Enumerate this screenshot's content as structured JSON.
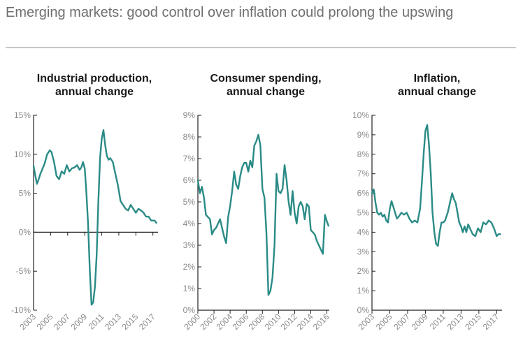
{
  "title": "Emerging markets: good control over inflation could prolong the upswing",
  "colors": {
    "line": "#2a8b86",
    "axis": "#222222",
    "tick_text": "#8a8a8a",
    "title_text": "#6f6f6f"
  },
  "chart_data": [
    {
      "type": "line",
      "title_lines": [
        "Industrial production,",
        "annual change"
      ],
      "ylim": [
        -10,
        15
      ],
      "y_ticks": [
        -10,
        -5,
        0,
        5,
        10,
        15
      ],
      "y_tick_labels": [
        "-10%",
        "-5%",
        "0%",
        "5%",
        "10%",
        "15%"
      ],
      "xlim": [
        2003,
        2017.6
      ],
      "x_ticks": [
        2003,
        2005,
        2007,
        2009,
        2011,
        2013,
        2015,
        2017
      ],
      "x_tick_labels": [
        "2003",
        "2005",
        "2007",
        "2009",
        "2011",
        "2013",
        "2015",
        "2017"
      ],
      "x_axis_at_zero": true,
      "series": [
        {
          "x": [
            2003.0,
            2003.2,
            2003.4,
            2003.6,
            2003.8,
            2004.0,
            2004.3,
            2004.6,
            2004.9,
            2005.1,
            2005.4,
            2005.7,
            2006.0,
            2006.3,
            2006.6,
            2006.9,
            2007.2,
            2007.5,
            2007.8,
            2008.1,
            2008.4,
            2008.6,
            2008.8,
            2009.0,
            2009.2,
            2009.4,
            2009.6,
            2009.8,
            2010.0,
            2010.2,
            2010.4,
            2010.6,
            2010.8,
            2011.0,
            2011.2,
            2011.4,
            2011.6,
            2011.8,
            2012.0,
            2012.3,
            2012.6,
            2012.9,
            2013.2,
            2013.5,
            2013.8,
            2014.1,
            2014.4,
            2014.7,
            2015.0,
            2015.3,
            2015.6,
            2015.9,
            2016.2,
            2016.5,
            2016.8,
            2017.0,
            2017.2,
            2017.4
          ],
          "y": [
            8.5,
            7.3,
            6.2,
            6.8,
            7.5,
            8.0,
            8.8,
            10.0,
            10.5,
            10.3,
            9.0,
            7.2,
            6.8,
            7.8,
            7.5,
            8.6,
            7.8,
            8.2,
            8.3,
            8.6,
            8.0,
            8.3,
            9.0,
            8.2,
            5.0,
            1.0,
            -5.0,
            -9.3,
            -9.0,
            -7.0,
            -3.0,
            4.0,
            9.5,
            12.0,
            13.1,
            11.2,
            9.8,
            9.3,
            9.5,
            9.0,
            7.5,
            6.0,
            4.0,
            3.5,
            3.0,
            2.8,
            3.5,
            3.0,
            2.5,
            3.0,
            2.8,
            2.5,
            2.0,
            2.0,
            1.5,
            1.5,
            1.5,
            1.2
          ]
        }
      ]
    },
    {
      "type": "line",
      "title_lines": [
        "Consumer spending,",
        "annual change"
      ],
      "ylim": [
        0,
        9
      ],
      "y_ticks": [
        0,
        1,
        2,
        3,
        4,
        5,
        6,
        7,
        8,
        9
      ],
      "y_tick_labels": [
        "0%",
        "1%",
        "2%",
        "3%",
        "4%",
        "5%",
        "6%",
        "7%",
        "8%",
        "9%"
      ],
      "xlim": [
        2000,
        2016.3
      ],
      "x_ticks": [
        2000,
        2002,
        2004,
        2006,
        2008,
        2010,
        2012,
        2014,
        2016
      ],
      "x_tick_labels": [
        "2000",
        "2002",
        "2004",
        "2006",
        "2008",
        "2010",
        "2012",
        "2014",
        "2016"
      ],
      "x_axis_at_zero": false,
      "series": [
        {
          "x": [
            2000.0,
            2000.25,
            2000.5,
            2000.75,
            2001.0,
            2001.25,
            2001.5,
            2001.75,
            2002.0,
            2002.25,
            2002.5,
            2002.75,
            2003.0,
            2003.25,
            2003.5,
            2003.75,
            2004.0,
            2004.25,
            2004.5,
            2004.75,
            2005.0,
            2005.25,
            2005.5,
            2005.75,
            2006.0,
            2006.25,
            2006.5,
            2006.75,
            2007.0,
            2007.25,
            2007.5,
            2007.75,
            2008.0,
            2008.25,
            2008.5,
            2008.75,
            2009.0,
            2009.25,
            2009.5,
            2009.75,
            2010.0,
            2010.25,
            2010.5,
            2010.75,
            2011.0,
            2011.25,
            2011.5,
            2011.75,
            2012.0,
            2012.25,
            2012.5,
            2012.75,
            2013.0,
            2013.25,
            2013.5,
            2013.75,
            2014.0,
            2014.25,
            2014.5,
            2014.75,
            2015.0,
            2015.25,
            2015.5,
            2015.75,
            2016.0,
            2016.2
          ],
          "y": [
            6.0,
            5.4,
            5.7,
            5.2,
            4.4,
            4.3,
            4.2,
            3.5,
            3.7,
            3.8,
            4.0,
            4.2,
            3.8,
            3.4,
            3.1,
            4.3,
            4.8,
            5.5,
            6.4,
            5.8,
            5.6,
            6.2,
            6.6,
            6.8,
            6.8,
            6.4,
            6.9,
            6.6,
            7.6,
            7.8,
            8.1,
            7.6,
            5.6,
            5.2,
            3.6,
            0.7,
            0.9,
            1.5,
            3.0,
            6.3,
            5.5,
            5.4,
            5.6,
            6.7,
            6.0,
            5.0,
            4.4,
            5.5,
            4.5,
            4.0,
            4.8,
            5.0,
            4.8,
            4.2,
            4.9,
            4.8,
            3.7,
            3.6,
            3.5,
            3.2,
            3.0,
            2.8,
            2.6,
            4.4,
            4.1,
            3.9
          ]
        }
      ]
    },
    {
      "type": "line",
      "title_lines": [
        "Inflation,",
        "annual change"
      ],
      "ylim": [
        0,
        10
      ],
      "y_ticks": [
        0,
        1,
        2,
        3,
        4,
        5,
        6,
        7,
        8,
        9,
        10
      ],
      "y_tick_labels": [
        "0%",
        "1%",
        "2%",
        "3%",
        "4%",
        "5%",
        "6%",
        "7%",
        "8%",
        "9%",
        "10%"
      ],
      "xlim": [
        2003,
        2017.6
      ],
      "x_ticks": [
        2003,
        2005,
        2007,
        2009,
        2011,
        2013,
        2015,
        2017
      ],
      "x_tick_labels": [
        "2003",
        "2005",
        "2007",
        "2009",
        "2011",
        "2013",
        "2015",
        "2017"
      ],
      "x_axis_at_zero": false,
      "series": [
        {
          "x": [
            2003.0,
            2003.2,
            2003.4,
            2003.6,
            2003.8,
            2004.0,
            2004.2,
            2004.4,
            2004.6,
            2004.8,
            2005.0,
            2005.2,
            2005.4,
            2005.6,
            2005.8,
            2006.0,
            2006.3,
            2006.6,
            2006.9,
            2007.2,
            2007.5,
            2007.8,
            2008.1,
            2008.4,
            2008.6,
            2008.8,
            2009.0,
            2009.2,
            2009.4,
            2009.6,
            2009.8,
            2010.0,
            2010.2,
            2010.4,
            2010.6,
            2010.8,
            2011.0,
            2011.2,
            2011.5,
            2011.8,
            2012.0,
            2012.2,
            2012.4,
            2012.6,
            2012.8,
            2013.0,
            2013.2,
            2013.4,
            2013.6,
            2013.8,
            2014.0,
            2014.3,
            2014.6,
            2014.9,
            2015.2,
            2015.5,
            2015.8,
            2016.1,
            2016.4,
            2016.7,
            2017.0,
            2017.2,
            2017.4
          ],
          "y": [
            6.0,
            6.2,
            5.5,
            5.0,
            4.9,
            5.0,
            4.8,
            4.9,
            4.6,
            4.5,
            5.2,
            5.6,
            5.3,
            5.0,
            4.7,
            4.8,
            5.0,
            4.9,
            5.0,
            4.7,
            4.5,
            4.6,
            4.5,
            5.2,
            6.5,
            8.0,
            9.2,
            9.5,
            8.5,
            7.0,
            5.0,
            4.0,
            3.4,
            3.3,
            4.0,
            4.5,
            4.5,
            4.6,
            5.0,
            5.6,
            6.0,
            5.7,
            5.5,
            5.0,
            4.5,
            4.3,
            4.0,
            4.3,
            4.0,
            4.4,
            4.2,
            3.9,
            3.8,
            4.2,
            4.0,
            4.5,
            4.4,
            4.6,
            4.5,
            4.2,
            3.8,
            3.9,
            3.9
          ]
        }
      ]
    }
  ]
}
